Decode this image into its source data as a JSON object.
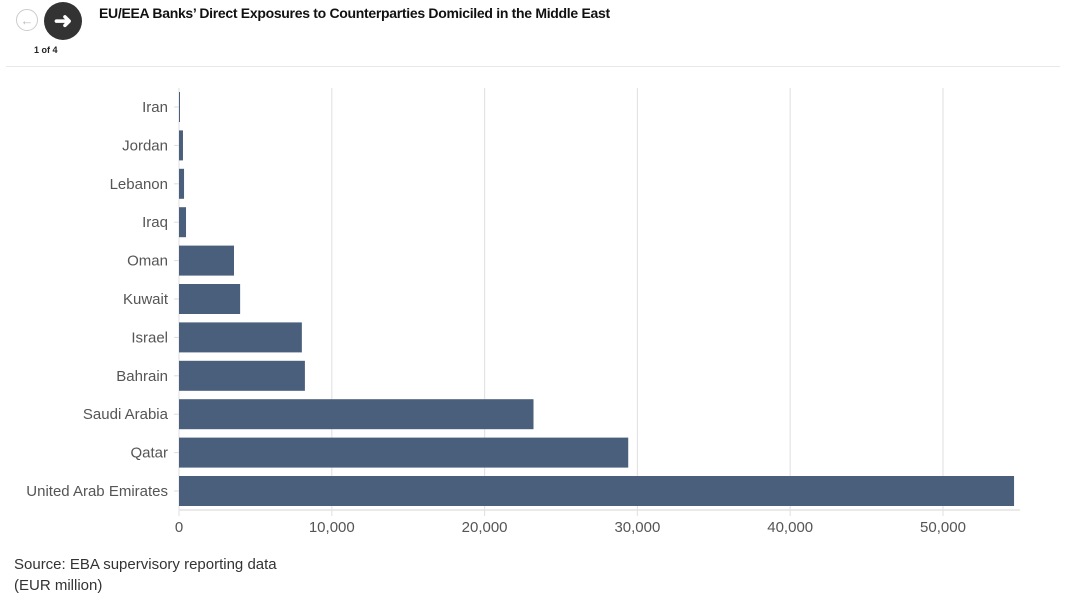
{
  "header": {
    "title": "EU/EEA Banks’ Direct Exposures to Counterparties Domiciled in the Middle East",
    "counter": "1 of 4",
    "prev_icon": "arrow-left-icon",
    "next_icon": "arrow-right-icon"
  },
  "footer": {
    "source": "Source: EBA supervisory reporting data",
    "unit": "(EUR million)"
  },
  "chart_data": {
    "type": "bar",
    "orientation": "horizontal",
    "title": "EU/EEA Banks’ Direct Exposures to Counterparties Domiciled in the Middle East",
    "categories": [
      "Iran",
      "Jordan",
      "Lebanon",
      "Iraq",
      "Oman",
      "Kuwait",
      "Israel",
      "Bahrain",
      "Saudi Arabia",
      "Qatar",
      "United Arab Emirates"
    ],
    "values": [
      40,
      260,
      330,
      460,
      3600,
      4000,
      8040,
      8240,
      23200,
      29400,
      54650
    ],
    "xlim": [
      0,
      55000
    ],
    "xticks": [
      0,
      10000,
      20000,
      30000,
      40000,
      50000
    ],
    "xtick_labels": [
      "0",
      "10,000",
      "20,000",
      "30,000",
      "40,000",
      "50,000"
    ],
    "xlabel": "",
    "ylabel": "",
    "grid": true,
    "bar_color": "#4a5f7b"
  }
}
